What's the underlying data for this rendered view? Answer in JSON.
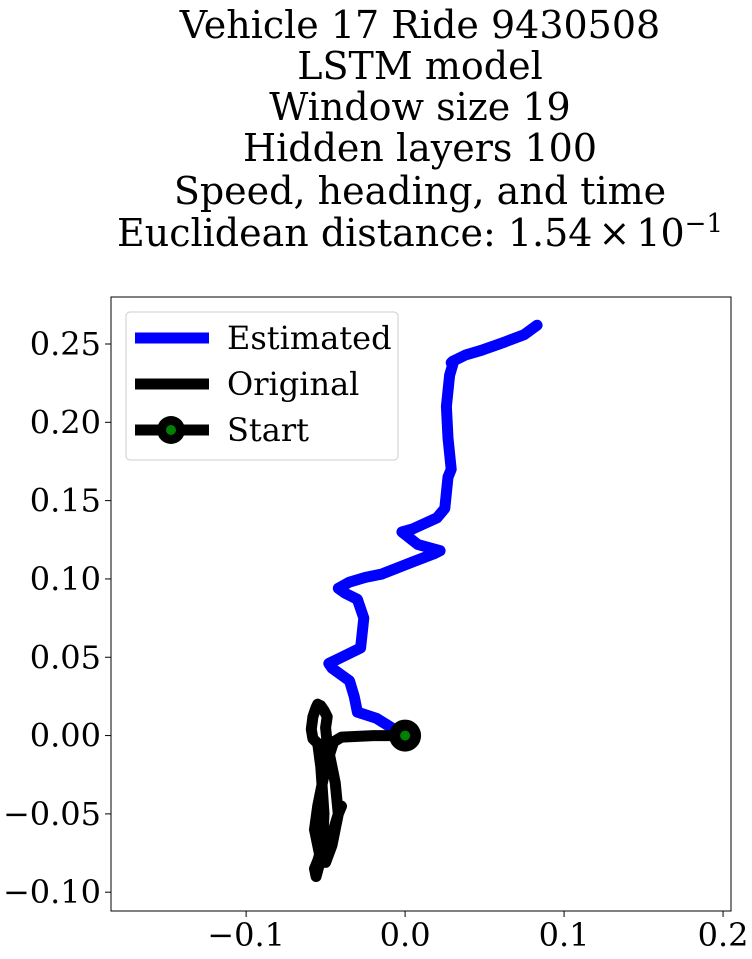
{
  "chart_data": {
    "type": "line",
    "title_lines": [
      "Vehicle 17 Ride 9430508",
      "LSTM model",
      "Window size 19",
      "Hidden layers 100",
      "Speed, heading, and time"
    ],
    "title_distance": {
      "prefix": "Euclidean distance: ",
      "mantissa": "1.54",
      "times": "×",
      "base": "10",
      "exponent": "−1"
    },
    "xlabel": "",
    "ylabel": "",
    "xlim": [
      -0.185,
      0.205
    ],
    "ylim": [
      -0.112,
      0.28
    ],
    "xticks": [
      {
        "value": -0.1,
        "label": "−0.1"
      },
      {
        "value": 0.0,
        "label": "0.0"
      },
      {
        "value": 0.1,
        "label": "0.1"
      },
      {
        "value": 0.2,
        "label": "0.2"
      }
    ],
    "yticks": [
      {
        "value": 0.25,
        "label": "0.25"
      },
      {
        "value": 0.2,
        "label": "0.20"
      },
      {
        "value": 0.15,
        "label": "0.15"
      },
      {
        "value": 0.1,
        "label": "0.10"
      },
      {
        "value": 0.05,
        "label": "0.05"
      },
      {
        "value": 0.0,
        "label": "0.00"
      },
      {
        "value": -0.05,
        "label": "−0.05"
      },
      {
        "value": -0.1,
        "label": "−0.10"
      }
    ],
    "grid": false,
    "legend_position": "upper left",
    "series": [
      {
        "name": "Estimated",
        "color": "#0000ff",
        "x": [
          0.0,
          -0.01,
          -0.018,
          -0.03,
          -0.032,
          -0.035,
          -0.046,
          -0.048,
          -0.04,
          -0.028,
          -0.026,
          -0.03,
          -0.038,
          -0.042,
          -0.035,
          -0.025,
          -0.015,
          -0.005,
          0.005,
          0.018,
          0.022,
          0.008,
          -0.002,
          0.005,
          0.02,
          0.025,
          0.027,
          0.029,
          0.027,
          0.026,
          0.028,
          0.03,
          0.029,
          0.03,
          0.032,
          0.038,
          0.048,
          0.062,
          0.075,
          0.083
        ],
        "y": [
          0.0,
          0.006,
          0.011,
          0.015,
          0.025,
          0.035,
          0.043,
          0.046,
          0.05,
          0.056,
          0.075,
          0.087,
          0.091,
          0.094,
          0.098,
          0.101,
          0.103,
          0.107,
          0.111,
          0.116,
          0.118,
          0.122,
          0.13,
          0.132,
          0.139,
          0.145,
          0.165,
          0.17,
          0.19,
          0.21,
          0.23,
          0.237,
          0.238,
          0.239,
          0.24,
          0.243,
          0.246,
          0.251,
          0.256,
          0.262
        ]
      },
      {
        "name": "Original",
        "color": "#000000",
        "x": [
          0.0,
          -0.02,
          -0.04,
          -0.045,
          -0.05,
          -0.055,
          -0.057,
          -0.054,
          -0.05,
          -0.046,
          -0.042,
          -0.044,
          -0.047,
          -0.049,
          -0.05,
          -0.049,
          -0.051,
          -0.053,
          -0.055,
          -0.056,
          -0.058,
          -0.059,
          -0.058,
          -0.055,
          -0.053,
          -0.051,
          -0.052,
          -0.055,
          -0.057,
          -0.056,
          -0.052,
          -0.045,
          -0.042,
          -0.04
        ],
        "y": [
          0.0,
          0.0,
          -0.001,
          -0.004,
          -0.02,
          -0.045,
          -0.06,
          -0.075,
          -0.081,
          -0.07,
          -0.05,
          -0.03,
          -0.015,
          -0.005,
          0.005,
          0.012,
          0.016,
          0.019,
          0.02,
          0.018,
          0.012,
          0.004,
          -0.002,
          -0.005,
          -0.02,
          -0.05,
          -0.07,
          -0.08,
          -0.085,
          -0.09,
          -0.075,
          -0.06,
          -0.05,
          -0.045
        ]
      }
    ],
    "start": {
      "name": "Start",
      "x": 0.0,
      "y": 0.0,
      "marker_color": "#008000",
      "edge_color": "#000000"
    },
    "legend_labels": [
      "Estimated",
      "Original",
      "Start"
    ]
  }
}
